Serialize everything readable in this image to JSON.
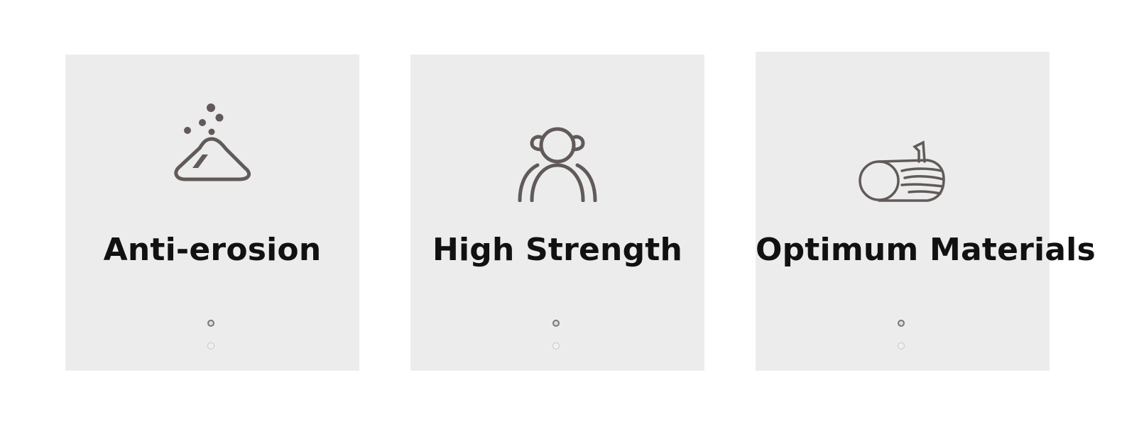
{
  "features": [
    {
      "title": "Anti-erosion",
      "icon": "erosion-icon",
      "active_dot": 1,
      "dot_count": 2
    },
    {
      "title": "High Strength",
      "icon": "strength-group-icon",
      "active_dot": 1,
      "dot_count": 2
    },
    {
      "title": "Optimum Materials",
      "icon": "log-material-icon",
      "active_dot": 1,
      "dot_count": 2
    }
  ],
  "colors": {
    "card_background": "#ececec",
    "icon_stroke": "#615a59",
    "title_text": "#111111"
  }
}
